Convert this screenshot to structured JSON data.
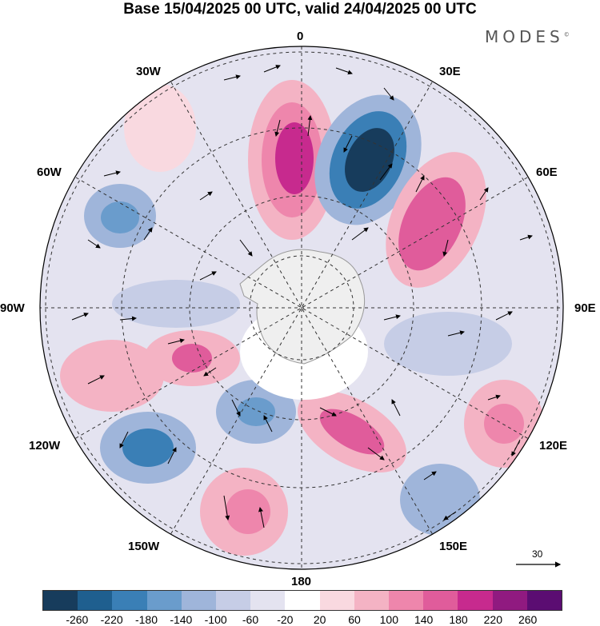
{
  "title": "Base 15/04/2025 00 UTC, valid 24/04/2025 00 UTC",
  "brand": "MODES",
  "brand_mark": "©",
  "longitudes": {
    "top": "0",
    "bottom": "180",
    "left": "90W",
    "right": "90E",
    "upper_left_1": "30W",
    "upper_left_2": "60W",
    "lower_left_1": "120W",
    "lower_left_2": "150W",
    "upper_right_1": "30E",
    "upper_right_2": "60E",
    "lower_right_1": "120E",
    "lower_right_2": "150E"
  },
  "reference_vector": "30",
  "colorbar": {
    "colors": [
      "#173c5c",
      "#1f5f8f",
      "#3a7fb6",
      "#6a9ccc",
      "#9fb5da",
      "#c6cde6",
      "#e4e3f0",
      "#ffffff",
      "#f9d9e0",
      "#f4b3c4",
      "#ee86ac",
      "#e05c9b",
      "#c72a8e",
      "#901a80",
      "#5b0d72"
    ],
    "ticks": [
      "-260",
      "-220",
      "-180",
      "-140",
      "-100",
      "-60",
      "-20",
      "20",
      "60",
      "100",
      "140",
      "180",
      "220",
      "260"
    ]
  },
  "anomaly_blobs": [
    {
      "name": "blob-pos-0",
      "color": "#c72a8e"
    },
    {
      "name": "blob-neg-30e",
      "color": "#1f5f8f"
    },
    {
      "name": "blob-pos-45e",
      "color": "#e05c9b"
    },
    {
      "name": "blob-neg-60w",
      "color": "#6a9ccc"
    },
    {
      "name": "blob-pos-100w",
      "color": "#e05c9b"
    },
    {
      "name": "blob-neg-120w",
      "color": "#3a7fb6"
    },
    {
      "name": "blob-neg-150w",
      "color": "#6a9ccc"
    },
    {
      "name": "blob-pos-160w",
      "color": "#ee86ac"
    },
    {
      "name": "blob-pos-165e",
      "color": "#e05c9b"
    },
    {
      "name": "blob-pos-120e",
      "color": "#ee86ac"
    },
    {
      "name": "blob-neg-150e",
      "color": "#9fb5da"
    },
    {
      "name": "blob-neg-100e",
      "color": "#c6cde6"
    }
  ]
}
